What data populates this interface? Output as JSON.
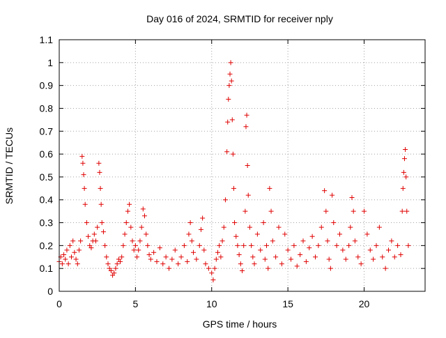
{
  "chart_data": {
    "type": "scatter",
    "title": "Day 016 of 2024, SRMTID for receiver nply",
    "xlabel": "GPS time / hours",
    "ylabel": "SRMTID / TECUs",
    "xlim": [
      0,
      24
    ],
    "ylim": [
      0,
      1.1
    ],
    "x_ticks": [
      0,
      5,
      10,
      15,
      20
    ],
    "y_ticks": [
      0,
      0.1,
      0.2,
      0.3,
      0.4,
      0.5,
      0.6,
      0.7,
      0.8,
      0.9,
      1.0,
      1.1
    ],
    "x_tick_labels": [
      "0",
      "5",
      "10",
      "15",
      "20"
    ],
    "y_tick_labels": [
      "0",
      "0.1",
      "0.2",
      "0.3",
      "0.4",
      "0.5",
      "0.6",
      "0.7",
      "0.8",
      "0.9",
      "1",
      "1.1"
    ],
    "grid": true,
    "marker": "plus",
    "series": [
      {
        "name": "SRMTID",
        "color": "#e00000",
        "points": [
          [
            0.0,
            0.13
          ],
          [
            0.1,
            0.15
          ],
          [
            0.2,
            0.12
          ],
          [
            0.3,
            0.16
          ],
          [
            0.4,
            0.14
          ],
          [
            0.5,
            0.18
          ],
          [
            0.6,
            0.12
          ],
          [
            0.7,
            0.2
          ],
          [
            0.8,
            0.15
          ],
          [
            0.9,
            0.22
          ],
          [
            1.0,
            0.17
          ],
          [
            1.1,
            0.14
          ],
          [
            1.2,
            0.12
          ],
          [
            1.3,
            0.18
          ],
          [
            1.4,
            0.22
          ],
          [
            1.5,
            0.59
          ],
          [
            1.55,
            0.56
          ],
          [
            1.6,
            0.51
          ],
          [
            1.65,
            0.45
          ],
          [
            1.7,
            0.38
          ],
          [
            1.8,
            0.3
          ],
          [
            1.9,
            0.24
          ],
          [
            2.0,
            0.2
          ],
          [
            2.1,
            0.19
          ],
          [
            2.2,
            0.22
          ],
          [
            2.3,
            0.25
          ],
          [
            2.4,
            0.22
          ],
          [
            2.5,
            0.28
          ],
          [
            2.6,
            0.56
          ],
          [
            2.65,
            0.52
          ],
          [
            2.7,
            0.45
          ],
          [
            2.75,
            0.38
          ],
          [
            2.8,
            0.3
          ],
          [
            2.9,
            0.26
          ],
          [
            3.0,
            0.2
          ],
          [
            3.1,
            0.15
          ],
          [
            3.2,
            0.12
          ],
          [
            3.3,
            0.1
          ],
          [
            3.4,
            0.09
          ],
          [
            3.5,
            0.07
          ],
          [
            3.6,
            0.08
          ],
          [
            3.7,
            0.1
          ],
          [
            3.8,
            0.12
          ],
          [
            3.9,
            0.14
          ],
          [
            4.0,
            0.13
          ],
          [
            4.1,
            0.15
          ],
          [
            4.2,
            0.2
          ],
          [
            4.3,
            0.25
          ],
          [
            4.4,
            0.3
          ],
          [
            4.5,
            0.35
          ],
          [
            4.6,
            0.38
          ],
          [
            4.7,
            0.28
          ],
          [
            4.8,
            0.22
          ],
          [
            4.9,
            0.18
          ],
          [
            5.0,
            0.2
          ],
          [
            5.1,
            0.15
          ],
          [
            5.2,
            0.18
          ],
          [
            5.3,
            0.22
          ],
          [
            5.4,
            0.28
          ],
          [
            5.5,
            0.36
          ],
          [
            5.6,
            0.33
          ],
          [
            5.7,
            0.25
          ],
          [
            5.8,
            0.2
          ],
          [
            5.9,
            0.16
          ],
          [
            6.0,
            0.14
          ],
          [
            6.2,
            0.17
          ],
          [
            6.4,
            0.13
          ],
          [
            6.6,
            0.19
          ],
          [
            6.8,
            0.12
          ],
          [
            7.0,
            0.15
          ],
          [
            7.2,
            0.1
          ],
          [
            7.4,
            0.14
          ],
          [
            7.6,
            0.18
          ],
          [
            7.8,
            0.12
          ],
          [
            8.0,
            0.15
          ],
          [
            8.2,
            0.2
          ],
          [
            8.4,
            0.13
          ],
          [
            8.5,
            0.25
          ],
          [
            8.6,
            0.3
          ],
          [
            8.7,
            0.22
          ],
          [
            8.8,
            0.17
          ],
          [
            9.0,
            0.14
          ],
          [
            9.2,
            0.2
          ],
          [
            9.3,
            0.27
          ],
          [
            9.4,
            0.32
          ],
          [
            9.5,
            0.18
          ],
          [
            9.6,
            0.12
          ],
          [
            9.8,
            0.1
          ],
          [
            10.0,
            0.08
          ],
          [
            10.1,
            0.05
          ],
          [
            10.2,
            0.1
          ],
          [
            10.3,
            0.14
          ],
          [
            10.4,
            0.17
          ],
          [
            10.5,
            0.2
          ],
          [
            10.6,
            0.15
          ],
          [
            10.7,
            0.22
          ],
          [
            10.8,
            0.28
          ],
          [
            10.9,
            0.4
          ],
          [
            11.0,
            0.61
          ],
          [
            11.05,
            0.74
          ],
          [
            11.1,
            0.84
          ],
          [
            11.15,
            0.9
          ],
          [
            11.2,
            0.95
          ],
          [
            11.25,
            1.0
          ],
          [
            11.3,
            0.92
          ],
          [
            11.35,
            0.75
          ],
          [
            11.4,
            0.6
          ],
          [
            11.45,
            0.45
          ],
          [
            11.5,
            0.3
          ],
          [
            11.6,
            0.24
          ],
          [
            11.7,
            0.2
          ],
          [
            11.8,
            0.16
          ],
          [
            11.9,
            0.12
          ],
          [
            12.0,
            0.09
          ],
          [
            12.1,
            0.2
          ],
          [
            12.2,
            0.35
          ],
          [
            12.25,
            0.72
          ],
          [
            12.3,
            0.77
          ],
          [
            12.35,
            0.55
          ],
          [
            12.4,
            0.42
          ],
          [
            12.5,
            0.28
          ],
          [
            12.6,
            0.2
          ],
          [
            12.7,
            0.15
          ],
          [
            12.8,
            0.12
          ],
          [
            13.0,
            0.25
          ],
          [
            13.2,
            0.18
          ],
          [
            13.4,
            0.3
          ],
          [
            13.5,
            0.14
          ],
          [
            13.6,
            0.2
          ],
          [
            13.7,
            0.1
          ],
          [
            13.8,
            0.45
          ],
          [
            13.9,
            0.35
          ],
          [
            14.0,
            0.22
          ],
          [
            14.2,
            0.15
          ],
          [
            14.4,
            0.28
          ],
          [
            14.6,
            0.12
          ],
          [
            14.8,
            0.25
          ],
          [
            15.0,
            0.18
          ],
          [
            15.2,
            0.14
          ],
          [
            15.4,
            0.2
          ],
          [
            15.6,
            0.11
          ],
          [
            15.8,
            0.16
          ],
          [
            16.0,
            0.22
          ],
          [
            16.2,
            0.13
          ],
          [
            16.4,
            0.19
          ],
          [
            16.6,
            0.24
          ],
          [
            16.8,
            0.15
          ],
          [
            17.0,
            0.2
          ],
          [
            17.2,
            0.28
          ],
          [
            17.4,
            0.44
          ],
          [
            17.5,
            0.35
          ],
          [
            17.6,
            0.22
          ],
          [
            17.7,
            0.14
          ],
          [
            17.8,
            0.1
          ],
          [
            17.9,
            0.42
          ],
          [
            18.0,
            0.3
          ],
          [
            18.2,
            0.2
          ],
          [
            18.4,
            0.25
          ],
          [
            18.6,
            0.18
          ],
          [
            18.8,
            0.14
          ],
          [
            19.0,
            0.2
          ],
          [
            19.1,
            0.28
          ],
          [
            19.2,
            0.41
          ],
          [
            19.3,
            0.35
          ],
          [
            19.4,
            0.22
          ],
          [
            19.6,
            0.15
          ],
          [
            19.8,
            0.12
          ],
          [
            20.0,
            0.35
          ],
          [
            20.2,
            0.25
          ],
          [
            20.4,
            0.18
          ],
          [
            20.6,
            0.14
          ],
          [
            20.8,
            0.2
          ],
          [
            21.0,
            0.28
          ],
          [
            21.2,
            0.15
          ],
          [
            21.4,
            0.1
          ],
          [
            21.6,
            0.18
          ],
          [
            21.8,
            0.22
          ],
          [
            22.0,
            0.15
          ],
          [
            22.2,
            0.2
          ],
          [
            22.4,
            0.16
          ],
          [
            22.5,
            0.35
          ],
          [
            22.55,
            0.45
          ],
          [
            22.6,
            0.52
          ],
          [
            22.65,
            0.58
          ],
          [
            22.7,
            0.62
          ],
          [
            22.75,
            0.5
          ],
          [
            22.8,
            0.35
          ],
          [
            22.9,
            0.2
          ]
        ]
      }
    ]
  }
}
